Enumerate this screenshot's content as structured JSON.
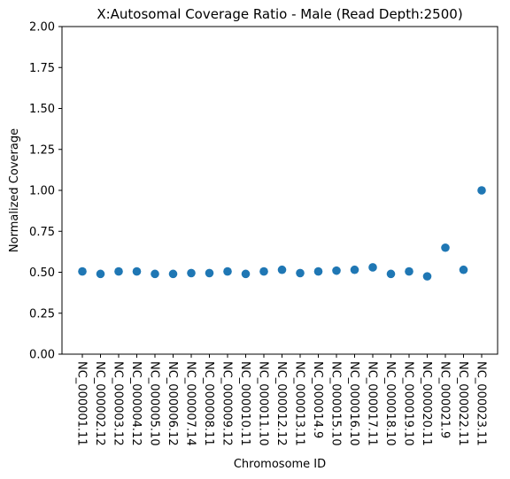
{
  "chart_data": {
    "type": "scatter",
    "title": "X:Autosomal Coverage Ratio - Male (Read Depth:2500)",
    "xlabel": "Chromosome ID",
    "ylabel": "Normalized Coverage",
    "categories": [
      "NC_000001.11",
      "NC_000002.12",
      "NC_000003.12",
      "NC_000004.12",
      "NC_000005.10",
      "NC_000006.12",
      "NC_000007.14",
      "NC_000008.11",
      "NC_000009.12",
      "NC_000010.11",
      "NC_000011.10",
      "NC_000012.12",
      "NC_000013.11",
      "NC_000014.9",
      "NC_000015.10",
      "NC_000016.10",
      "NC_000017.11",
      "NC_000018.10",
      "NC_000019.10",
      "NC_000020.11",
      "NC_000021.9",
      "NC_000022.11",
      "NC_000023.11"
    ],
    "values": [
      0.505,
      0.49,
      0.505,
      0.505,
      0.49,
      0.49,
      0.495,
      0.495,
      0.505,
      0.49,
      0.505,
      0.515,
      0.495,
      0.505,
      0.51,
      0.515,
      0.53,
      0.49,
      0.505,
      0.475,
      0.65,
      0.515,
      1.0
    ],
    "ylim": [
      0,
      2
    ],
    "yticks": [
      "0.00",
      "0.25",
      "0.50",
      "0.75",
      "1.00",
      "1.25",
      "1.50",
      "1.75",
      "2.00"
    ],
    "grid": false,
    "marker_color": "#1f77b4"
  }
}
